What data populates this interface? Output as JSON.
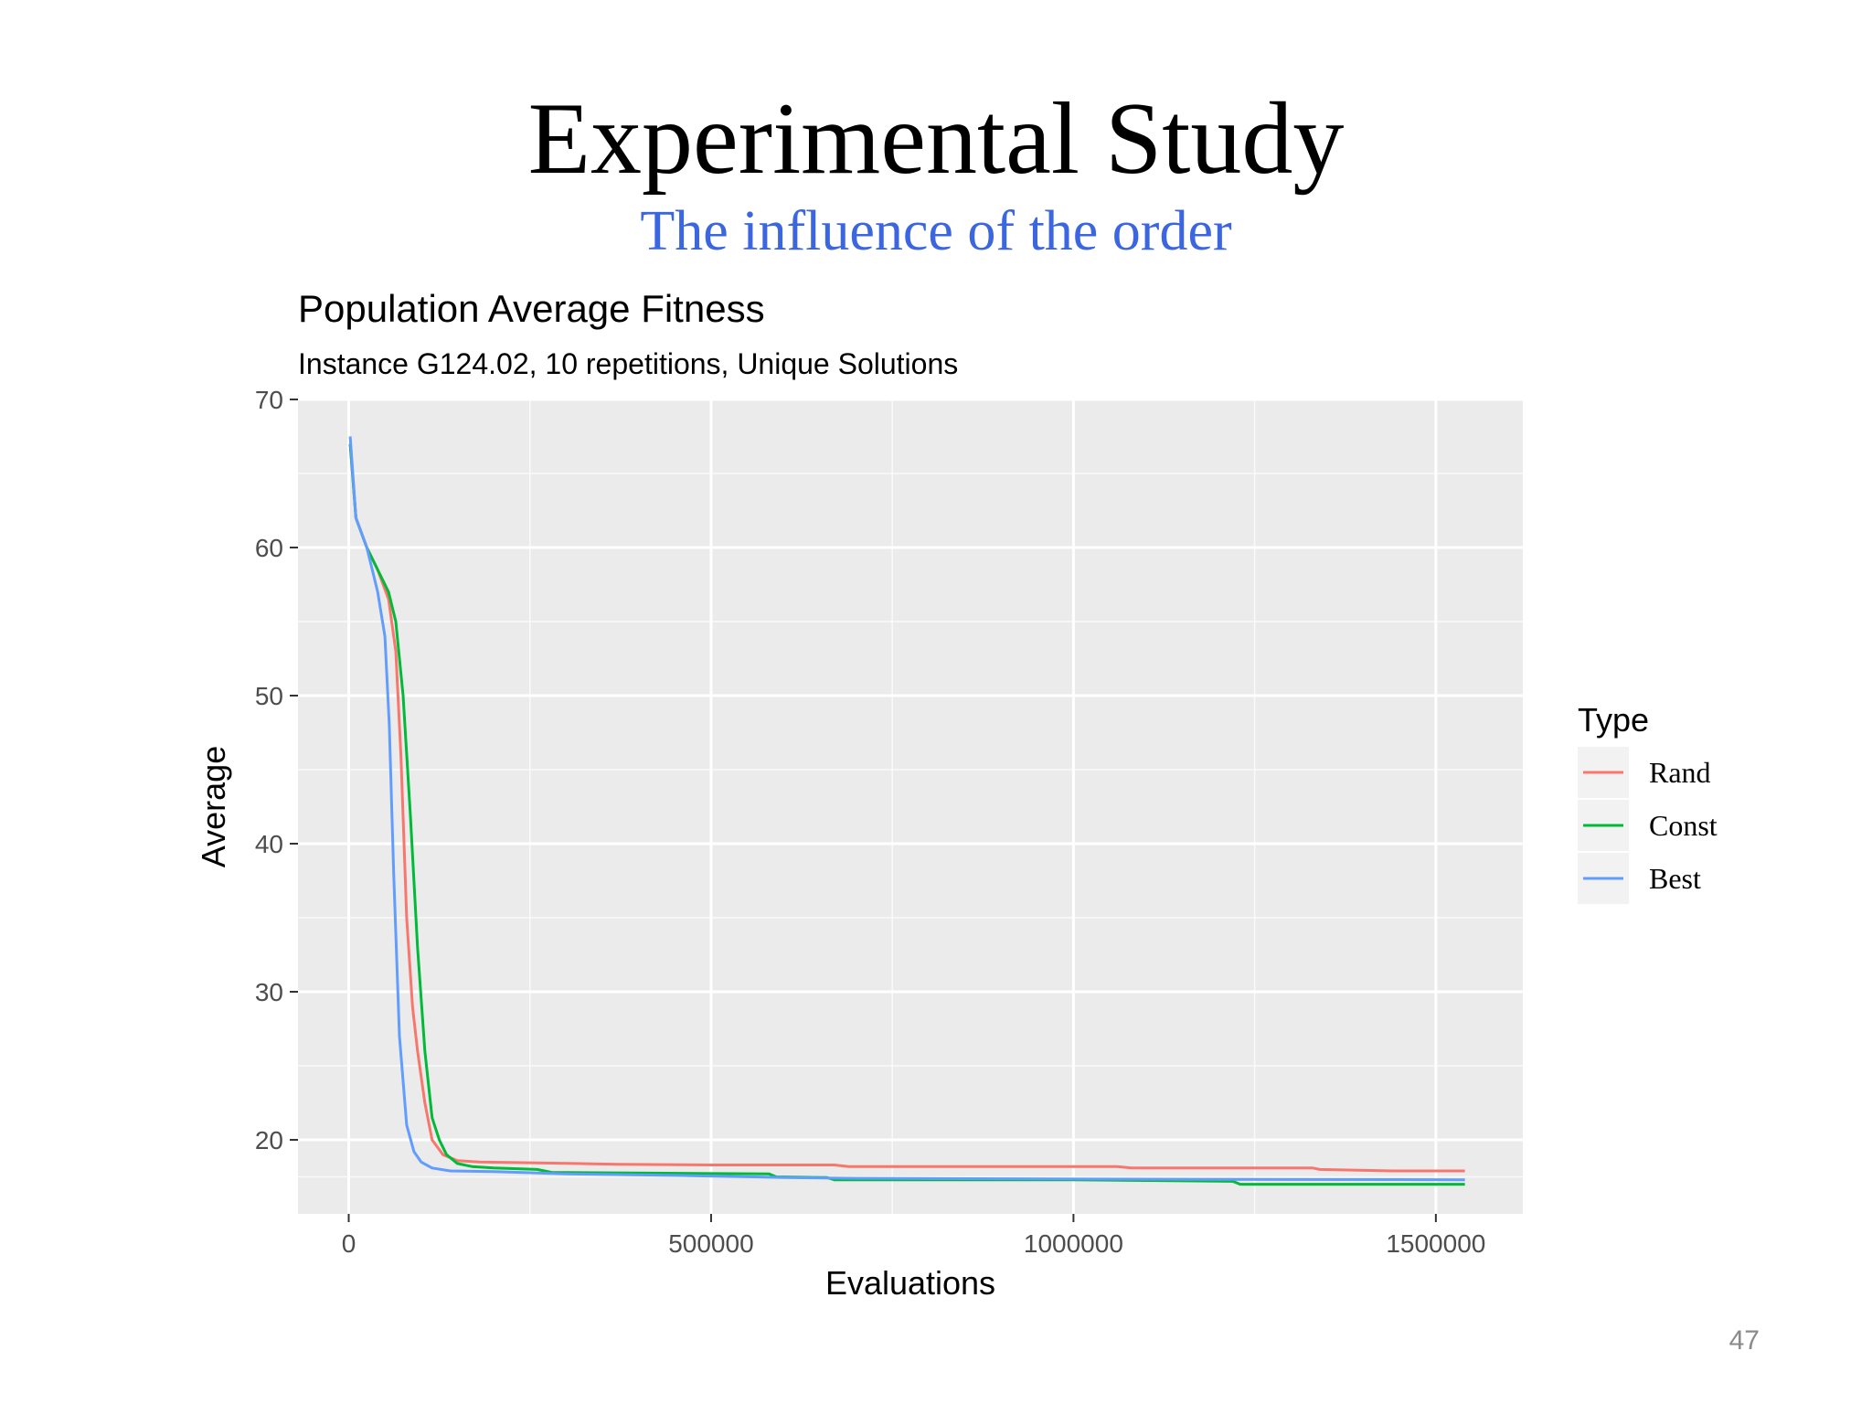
{
  "slide": {
    "title": "Experimental Study",
    "subtitle": "The influence of the order",
    "page_number": "47"
  },
  "chart_data": {
    "type": "line",
    "title": "Population Average Fitness",
    "subtitle": "Instance G124.02, 10 repetitions, Unique Solutions",
    "xlabel": "Evaluations",
    "ylabel": "Average",
    "xlim": [
      -70000,
      1620000
    ],
    "ylim": [
      15,
      70
    ],
    "xticks": [
      0,
      500000,
      1000000,
      1500000
    ],
    "xtick_labels": [
      "0",
      "500000",
      "1000000",
      "1500000"
    ],
    "yticks": [
      20,
      30,
      40,
      50,
      60,
      70
    ],
    "ytick_labels": [
      "20",
      "30",
      "40",
      "50",
      "60",
      "70"
    ],
    "grid": true,
    "legend": {
      "title": "Type",
      "position": "right"
    },
    "panel_background": "#ebebeb",
    "series": [
      {
        "name": "Rand",
        "color": "#f8766d",
        "x": [
          2000,
          10000,
          25000,
          40000,
          55000,
          65000,
          72000,
          80000,
          88000,
          95000,
          105000,
          115000,
          130000,
          150000,
          180000,
          250000,
          370000,
          500000,
          670000,
          690000,
          900000,
          1060000,
          1080000,
          1330000,
          1340000,
          1440000,
          1540000
        ],
        "y": [
          67,
          62,
          60,
          58.5,
          56.5,
          53,
          46,
          35,
          29,
          26,
          22.5,
          20,
          19,
          18.6,
          18.5,
          18.45,
          18.35,
          18.3,
          18.3,
          18.2,
          18.2,
          18.2,
          18.1,
          18.1,
          18.0,
          17.9,
          17.9
        ]
      },
      {
        "name": "Const",
        "color": "#00ba38",
        "x": [
          2000,
          10000,
          25000,
          40000,
          55000,
          65000,
          75000,
          85000,
          95000,
          105000,
          115000,
          125000,
          135000,
          150000,
          170000,
          200000,
          260000,
          280000,
          580000,
          590000,
          660000,
          670000,
          1000000,
          1220000,
          1230000,
          1540000
        ],
        "y": [
          67,
          62,
          60,
          58.5,
          57,
          55,
          50,
          42,
          33,
          26,
          21.5,
          20,
          19,
          18.4,
          18.2,
          18.1,
          18.0,
          17.8,
          17.7,
          17.5,
          17.45,
          17.3,
          17.3,
          17.2,
          17.0,
          17.0
        ]
      },
      {
        "name": "Best",
        "color": "#619cff",
        "x": [
          2000,
          10000,
          25000,
          40000,
          50000,
          56000,
          62000,
          70000,
          80000,
          90000,
          100000,
          115000,
          140000,
          200000,
          300000,
          450000,
          560000,
          600000,
          700000,
          1000000,
          1540000
        ],
        "y": [
          67.5,
          62,
          60,
          57,
          54,
          48,
          38,
          27,
          21,
          19.2,
          18.5,
          18.1,
          17.9,
          17.85,
          17.7,
          17.6,
          17.5,
          17.45,
          17.4,
          17.35,
          17.3
        ]
      }
    ]
  }
}
